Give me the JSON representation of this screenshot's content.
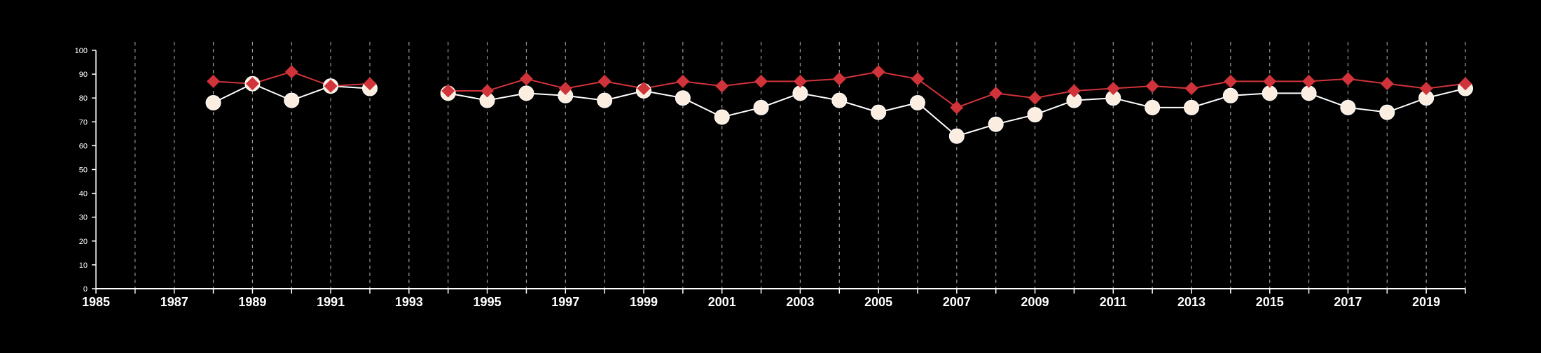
{
  "chart_data": {
    "type": "line",
    "title": "",
    "xlabel": "",
    "ylabel": "",
    "xlim": [
      1985,
      2020
    ],
    "ylim": [
      0,
      100
    ],
    "x_ticks": [
      1985,
      1987,
      1989,
      1991,
      1993,
      1995,
      1997,
      1999,
      2001,
      2003,
      2005,
      2007,
      2009,
      2011,
      2013,
      2015,
      2017,
      2019
    ],
    "x_tick_labels": [
      "1985",
      "1987",
      "1989",
      "1991",
      "1993",
      "1995",
      "1997",
      "1999",
      "2001",
      "2003",
      "2005",
      "2007",
      "2009",
      "2011",
      "2013",
      "2015",
      "2017",
      "2019"
    ],
    "y_ticks": [
      0,
      10,
      20,
      30,
      40,
      50,
      60,
      70,
      80,
      90,
      100
    ],
    "y_tick_labels": [
      "0",
      "10",
      "20",
      "30",
      "40",
      "50",
      "60",
      "70",
      "80",
      "90",
      "100"
    ],
    "vertical_grid": "dashed, every year 1986-2020",
    "legend": "none",
    "x": [
      1988,
      1989,
      1990,
      1991,
      1992,
      1993,
      1994,
      1995,
      1996,
      1997,
      1998,
      1999,
      2000,
      2001,
      2002,
      2003,
      2004,
      2005,
      2006,
      2007,
      2008,
      2009,
      2010,
      2011,
      2012,
      2013,
      2014,
      2015,
      2016,
      2017,
      2018,
      2019,
      2020
    ],
    "series": [
      {
        "marker": "diamond",
        "color": "#d0343a",
        "values": [
          87,
          86,
          91,
          85,
          86,
          null,
          83,
          83,
          88,
          84,
          87,
          84,
          87,
          85,
          87,
          87,
          88,
          91,
          88,
          76,
          82,
          80,
          83,
          84,
          85,
          84,
          87,
          87,
          87,
          88,
          86,
          84,
          86
        ]
      },
      {
        "marker": "circle",
        "color": "#fbeee0",
        "line_color": "#ffffff",
        "values": [
          78,
          86,
          79,
          85,
          84,
          null,
          82,
          79,
          82,
          81,
          79,
          83,
          80,
          72,
          76,
          82,
          79,
          74,
          78,
          64,
          69,
          73,
          79,
          80,
          76,
          76,
          81,
          82,
          82,
          76,
          74,
          80,
          84
        ]
      }
    ]
  }
}
